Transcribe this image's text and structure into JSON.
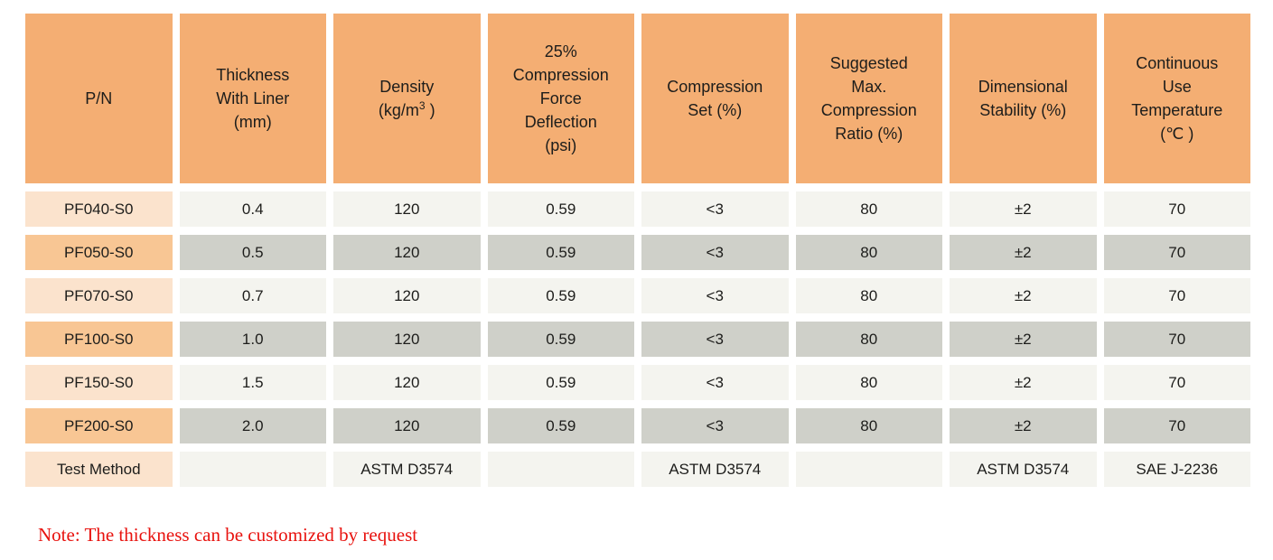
{
  "table": {
    "columns": [
      {
        "id": "pn",
        "lines": [
          "P/N"
        ]
      },
      {
        "id": "thickness",
        "lines": [
          "Thickness",
          "With Liner",
          "(mm)"
        ]
      },
      {
        "id": "density",
        "lines": [
          "Density"
        ],
        "unit_prefix": "(kg/m",
        "unit_sup": "3",
        "unit_suffix": " )"
      },
      {
        "id": "cfd",
        "lines": [
          "25%",
          "Compression",
          "Force",
          "Deflection",
          "(psi)"
        ]
      },
      {
        "id": "compression_set",
        "lines": [
          "Compression",
          "Set (%)"
        ]
      },
      {
        "id": "max_ratio",
        "lines": [
          "Suggested",
          "Max.",
          "Compression",
          "Ratio (%)"
        ]
      },
      {
        "id": "dimensional",
        "lines": [
          "Dimensional",
          "Stability (%)"
        ]
      },
      {
        "id": "temperature",
        "lines": [
          "Continuous",
          "Use",
          "Temperature",
          "(℃ )"
        ]
      }
    ],
    "rows": [
      {
        "pn": "PF040-S0",
        "thickness": "0.4",
        "density": "120",
        "cfd": "0.59",
        "compression_set": "<3",
        "max_ratio": "80",
        "dimensional": "±2",
        "temperature": "70"
      },
      {
        "pn": "PF050-S0",
        "thickness": "0.5",
        "density": "120",
        "cfd": "0.59",
        "compression_set": "<3",
        "max_ratio": "80",
        "dimensional": "±2",
        "temperature": "70"
      },
      {
        "pn": "PF070-S0",
        "thickness": "0.7",
        "density": "120",
        "cfd": "0.59",
        "compression_set": "<3",
        "max_ratio": "80",
        "dimensional": "±2",
        "temperature": "70"
      },
      {
        "pn": "PF100-S0",
        "thickness": "1.0",
        "density": "120",
        "cfd": "0.59",
        "compression_set": "<3",
        "max_ratio": "80",
        "dimensional": "±2",
        "temperature": "70"
      },
      {
        "pn": "PF150-S0",
        "thickness": "1.5",
        "density": "120",
        "cfd": "0.59",
        "compression_set": "<3",
        "max_ratio": "80",
        "dimensional": "±2",
        "temperature": "70"
      },
      {
        "pn": "PF200-S0",
        "thickness": "2.0",
        "density": "120",
        "cfd": "0.59",
        "compression_set": "<3",
        "max_ratio": "80",
        "dimensional": "±2",
        "temperature": "70"
      },
      {
        "pn": "Test Method",
        "thickness": "",
        "density": "ASTM D3574",
        "cfd": "",
        "compression_set": "ASTM D3574",
        "max_ratio": "",
        "dimensional": "ASTM D3574",
        "temperature": "SAE J-2236"
      }
    ]
  },
  "note": "Note: The thickness can be customized by request",
  "colors": {
    "header_bg": "#f4ae73",
    "pn_row_light": "#fbe3cd",
    "pn_row_dark": "#f8c694",
    "data_row_light": "#f4f4ef",
    "data_row_dark": "#cfd0c9",
    "note_text": "#e8120e",
    "cell_text": "#1d1d1b"
  }
}
